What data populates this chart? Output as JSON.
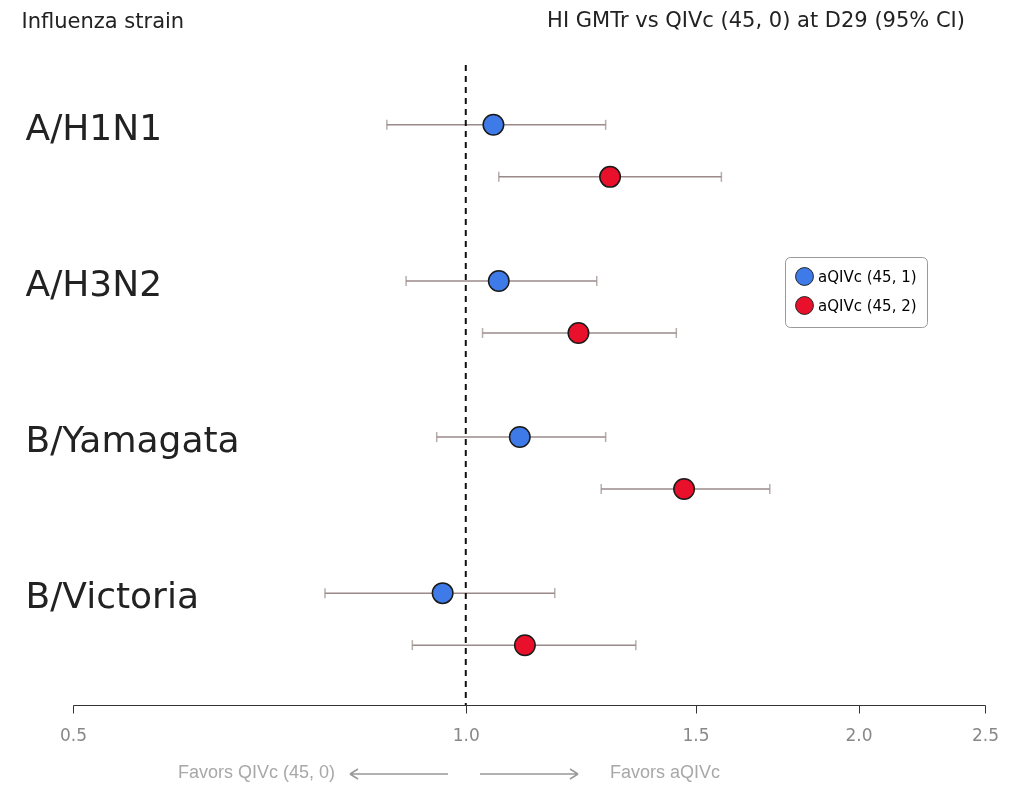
{
  "chart_data": {
    "type": "scatter",
    "orientation": "horizontal",
    "title": "HI GMTr vs QIVc (45, 0) at D29 (95% CI)",
    "ylabel": "Influenza strain",
    "categories": [
      "A/H1N1",
      "A/H3N2",
      "B/Yamagata",
      "B/Victoria"
    ],
    "series": [
      {
        "name": "aQIVc (45, 1)",
        "color": "#3f7be8",
        "values": [
          1.05,
          1.06,
          1.1,
          0.96
        ],
        "errors": [
          [
            0.87,
            1.28
          ],
          [
            0.9,
            1.26
          ],
          [
            0.95,
            1.28
          ],
          [
            0.78,
            1.17
          ]
        ]
      },
      {
        "name": "aQIVc (45, 2)",
        "color": "#e8102a",
        "values": [
          1.29,
          1.22,
          1.47,
          1.11
        ],
        "errors": [
          [
            1.06,
            1.57
          ],
          [
            1.03,
            1.45
          ],
          [
            1.27,
            1.71
          ],
          [
            0.91,
            1.35
          ]
        ]
      }
    ],
    "log": "x",
    "xlim": [
      0.5,
      2.5
    ],
    "xticks": [
      {
        "value": 0.5,
        "label": "0.5"
      },
      {
        "value": 1,
        "label": "1.0"
      },
      {
        "value": 1.5,
        "label": "1.5"
      },
      {
        "value": 2,
        "label": "2.0"
      },
      {
        "value": 2.5,
        "label": "2.5"
      }
    ],
    "ref_lines": [
      {
        "axis": "x",
        "value": 1,
        "line_style": "dashed",
        "color": "#111111"
      }
    ],
    "marker": "circle",
    "legend": "right",
    "annotations": [
      "Favors QIVc (45, 0)",
      "Favors aQIVc"
    ]
  }
}
